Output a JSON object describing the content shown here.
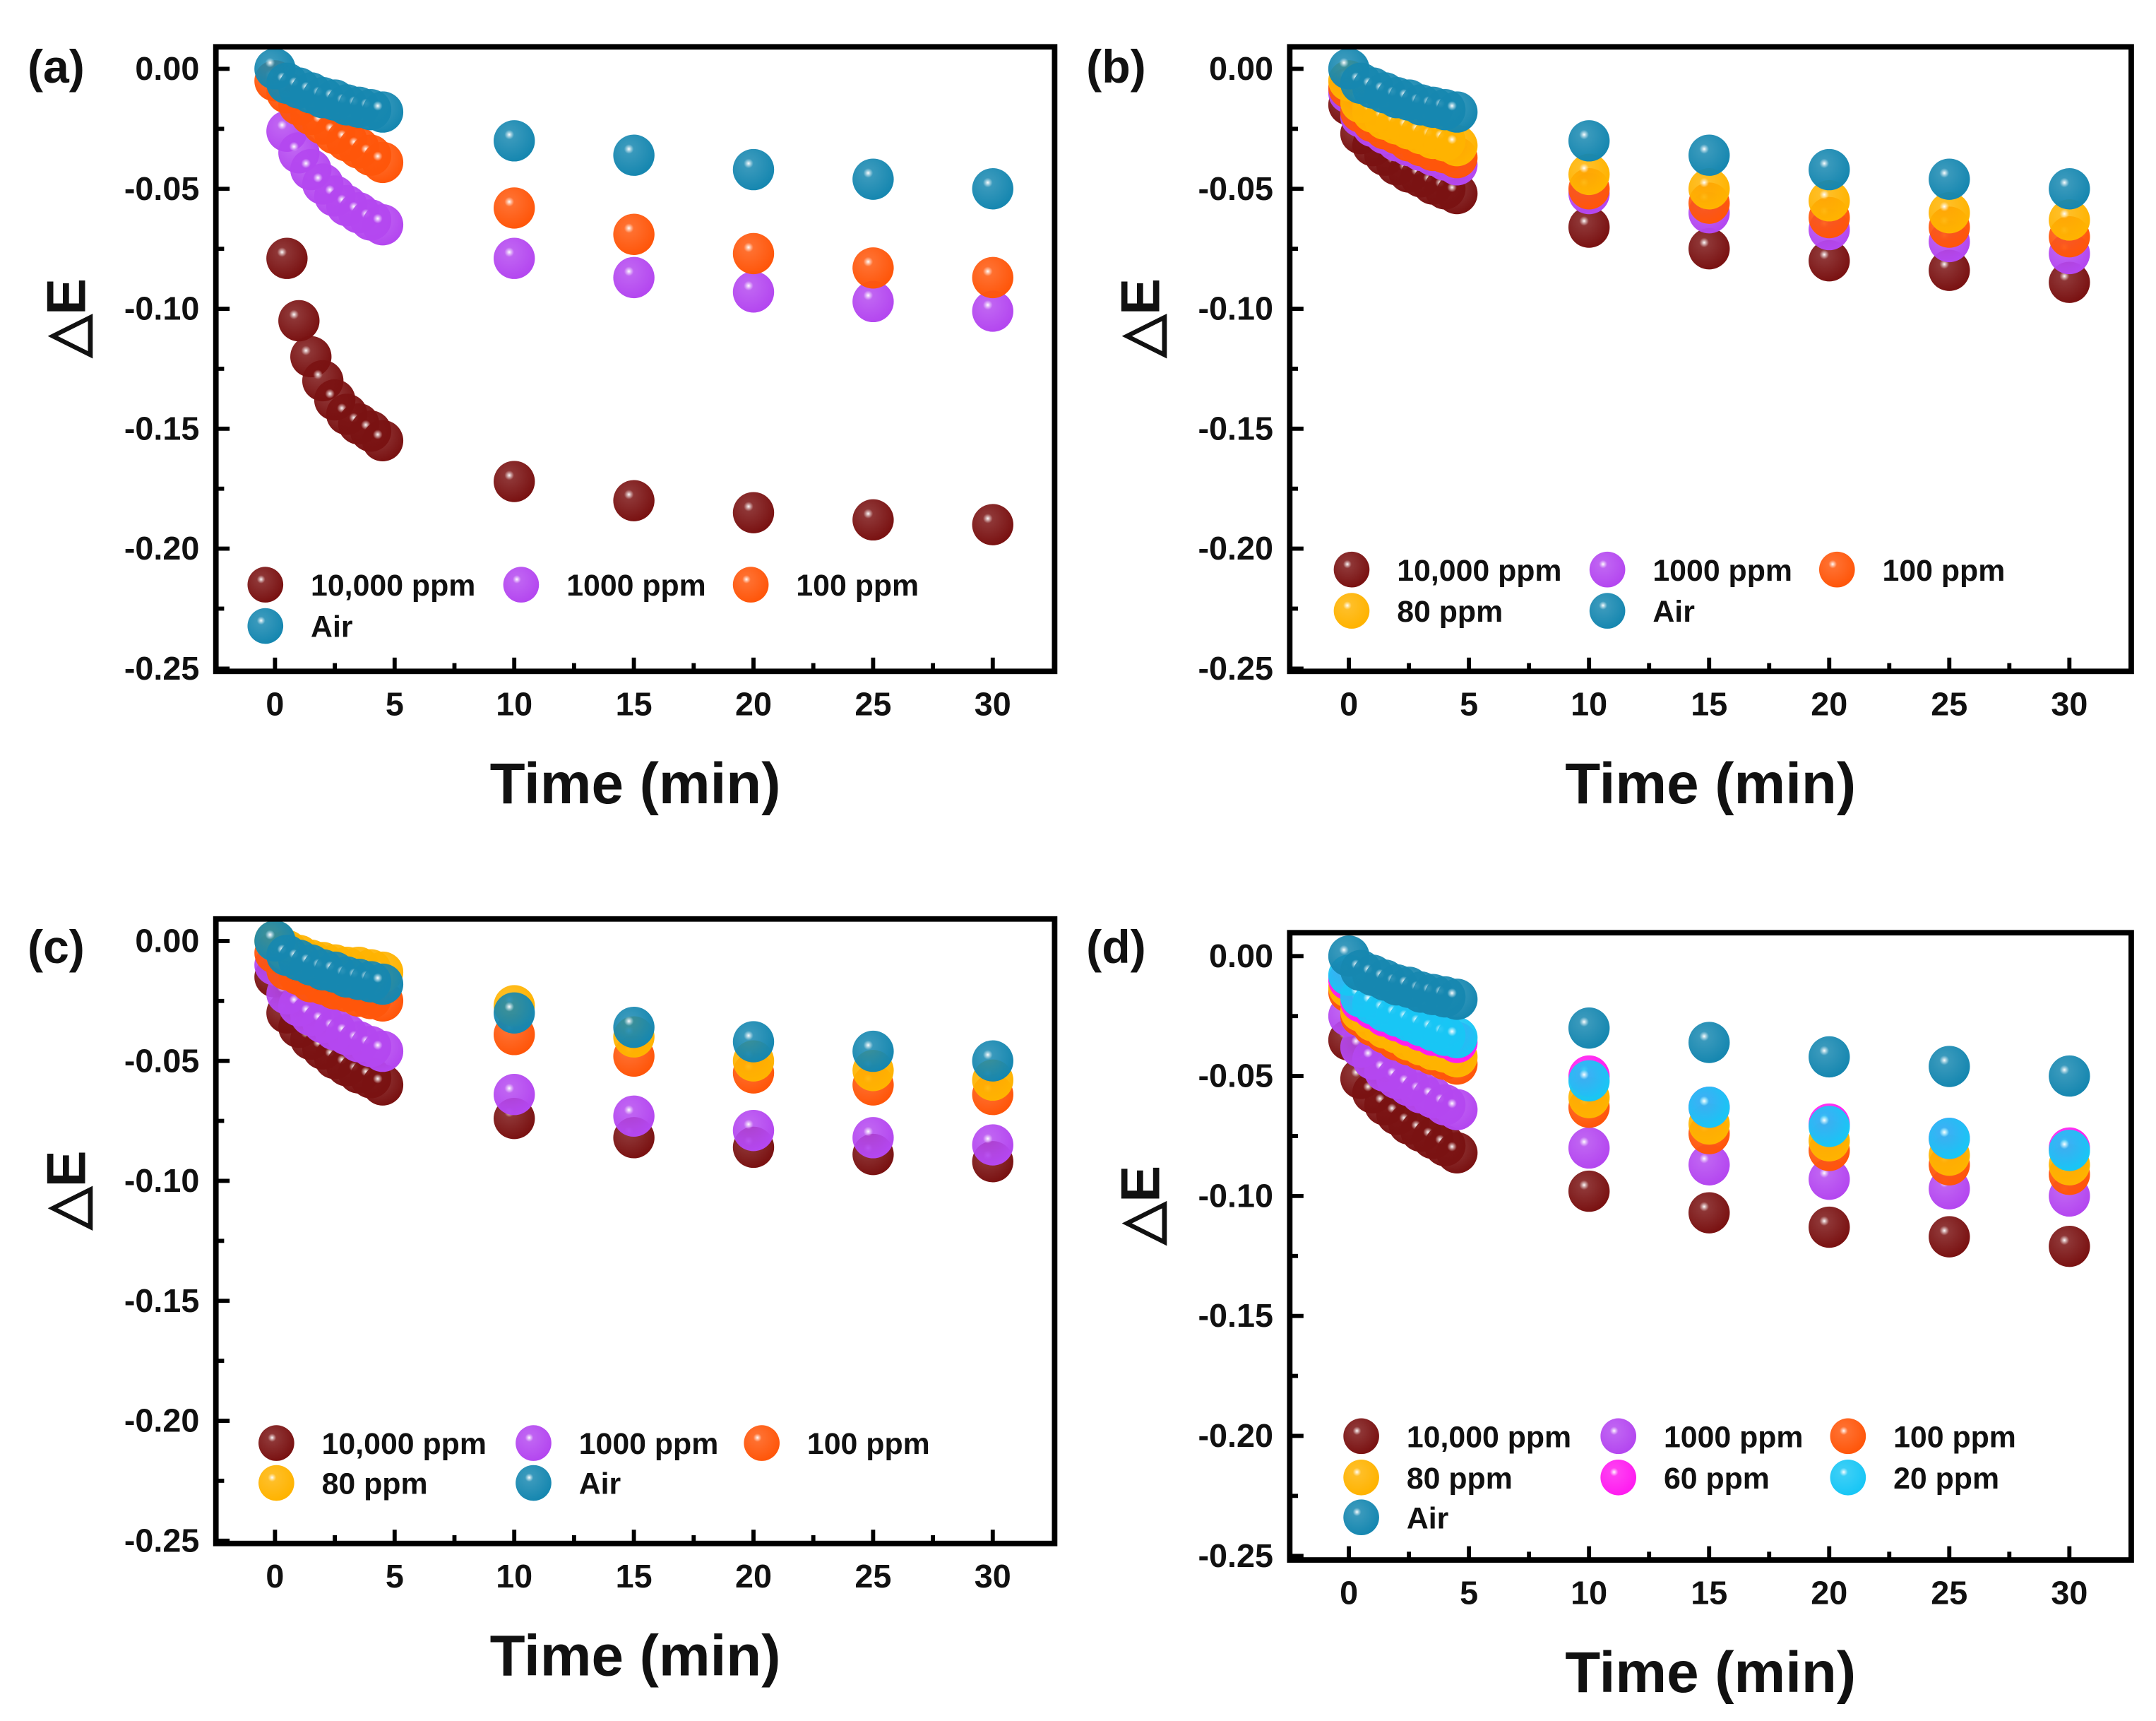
{
  "chart_data": [
    {
      "type": "scatter",
      "panel_label": "(a)",
      "xlabel": "Time (min)",
      "ylabel": "△E",
      "xlim": [
        -2.5,
        32.5
      ],
      "ylim": [
        -0.25,
        0.01
      ],
      "xticks": [
        "0",
        "5",
        "10",
        "15",
        "20",
        "25",
        "30"
      ],
      "yticks": [
        "0.00",
        "-0.05",
        "-0.10",
        "-0.15",
        "-0.20",
        "-0.25"
      ],
      "legend_placement": "bottom-left",
      "x": [
        0,
        0.5,
        1,
        1.5,
        2,
        2.5,
        3,
        3.5,
        4,
        4.5,
        10,
        15,
        20,
        25,
        30
      ],
      "series": [
        {
          "name": "10,000 ppm",
          "color": "#7a1212",
          "values": [
            null,
            -0.079,
            -0.105,
            -0.12,
            -0.13,
            -0.138,
            -0.144,
            -0.148,
            -0.151,
            -0.155,
            -0.172,
            -0.18,
            -0.185,
            -0.188,
            -0.19
          ]
        },
        {
          "name": "1000 ppm",
          "color": "#b447f0",
          "values": [
            null,
            -0.026,
            -0.035,
            -0.042,
            -0.048,
            -0.053,
            -0.057,
            -0.06,
            -0.063,
            -0.065,
            -0.079,
            -0.087,
            -0.093,
            -0.097,
            -0.101
          ]
        },
        {
          "name": "100 ppm",
          "color": "#ff560a",
          "values": [
            -0.005,
            -0.01,
            -0.015,
            -0.019,
            -0.023,
            -0.027,
            -0.03,
            -0.033,
            -0.036,
            -0.039,
            -0.058,
            -0.069,
            -0.077,
            -0.083,
            -0.087
          ]
        },
        {
          "name": "Air",
          "color": "#1687b0",
          "values": [
            0,
            -0.006,
            -0.008,
            -0.01,
            -0.012,
            -0.013,
            -0.015,
            -0.016,
            -0.017,
            -0.018,
            -0.03,
            -0.036,
            -0.042,
            -0.046,
            -0.05
          ]
        }
      ]
    },
    {
      "type": "scatter",
      "panel_label": "(b)",
      "xlabel": "Time (min)",
      "ylabel": "△E",
      "xlim": [
        -2.5,
        32.5
      ],
      "ylim": [
        -0.25,
        0.01
      ],
      "xticks": [
        "0",
        "5",
        "10",
        "15",
        "20",
        "25",
        "30"
      ],
      "yticks": [
        "0.00",
        "-0.05",
        "-0.10",
        "-0.15",
        "-0.20",
        "-0.25"
      ],
      "legend_placement": "bottom-left",
      "x": [
        0,
        0.5,
        1,
        1.5,
        2,
        2.5,
        3,
        3.5,
        4,
        4.5,
        10,
        15,
        20,
        25,
        30
      ],
      "series": [
        {
          "name": "10,000 ppm",
          "color": "#7a1212",
          "values": [
            -0.015,
            -0.027,
            -0.032,
            -0.036,
            -0.04,
            -0.043,
            -0.045,
            -0.048,
            -0.05,
            -0.052,
            -0.066,
            -0.075,
            -0.08,
            -0.084,
            -0.089
          ]
        },
        {
          "name": "1000 ppm",
          "color": "#b447f0",
          "values": [
            -0.01,
            -0.02,
            -0.024,
            -0.027,
            -0.03,
            -0.032,
            -0.034,
            -0.036,
            -0.038,
            -0.04,
            -0.052,
            -0.06,
            -0.067,
            -0.072,
            -0.077
          ]
        },
        {
          "name": "100 ppm",
          "color": "#ff560a",
          "values": [
            -0.008,
            -0.018,
            -0.022,
            -0.025,
            -0.027,
            -0.03,
            -0.032,
            -0.034,
            -0.035,
            -0.037,
            -0.05,
            -0.056,
            -0.062,
            -0.066,
            -0.07
          ]
        },
        {
          "name": "80 ppm",
          "color": "#ffb300",
          "values": [
            -0.005,
            -0.014,
            -0.018,
            -0.021,
            -0.023,
            -0.025,
            -0.027,
            -0.029,
            -0.03,
            -0.032,
            -0.044,
            -0.05,
            -0.055,
            -0.06,
            -0.063
          ]
        },
        {
          "name": "Air",
          "color": "#1687b0",
          "values": [
            0,
            -0.006,
            -0.008,
            -0.01,
            -0.012,
            -0.013,
            -0.015,
            -0.016,
            -0.017,
            -0.018,
            -0.03,
            -0.036,
            -0.042,
            -0.046,
            -0.05
          ]
        }
      ]
    },
    {
      "type": "scatter",
      "panel_label": "(c)",
      "xlabel": "Time (min)",
      "ylabel": "△E",
      "xlim": [
        -2.5,
        32.5
      ],
      "ylim": [
        -0.25,
        0.01
      ],
      "xticks": [
        "0",
        "5",
        "10",
        "15",
        "20",
        "25",
        "30"
      ],
      "yticks": [
        "0.00",
        "-0.05",
        "-0.10",
        "-0.15",
        "-0.20",
        "-0.25"
      ],
      "legend_placement": "bottom-left",
      "x": [
        0,
        0.5,
        1,
        1.5,
        2,
        2.5,
        3,
        3.5,
        4,
        4.5,
        10,
        15,
        20,
        25,
        30
      ],
      "series": [
        {
          "name": "10,000 ppm",
          "color": "#7a1212",
          "values": [
            -0.015,
            -0.03,
            -0.036,
            -0.041,
            -0.045,
            -0.049,
            -0.052,
            -0.055,
            -0.057,
            -0.06,
            -0.074,
            -0.082,
            -0.086,
            -0.089,
            -0.092
          ]
        },
        {
          "name": "1000 ppm",
          "color": "#b447f0",
          "values": [
            -0.01,
            -0.022,
            -0.027,
            -0.031,
            -0.034,
            -0.037,
            -0.039,
            -0.042,
            -0.044,
            -0.046,
            -0.064,
            -0.073,
            -0.079,
            -0.082,
            -0.085
          ]
        },
        {
          "name": "100 ppm",
          "color": "#ff560a",
          "values": [
            -0.005,
            -0.012,
            -0.014,
            -0.017,
            -0.018,
            -0.02,
            -0.021,
            -0.023,
            -0.024,
            -0.025,
            -0.039,
            -0.048,
            -0.055,
            -0.06,
            -0.064
          ]
        },
        {
          "name": "80 ppm",
          "color": "#ffb300",
          "values": [
            0,
            -0.004,
            -0.006,
            -0.008,
            -0.009,
            -0.01,
            -0.011,
            -0.011,
            -0.012,
            -0.013,
            -0.027,
            -0.04,
            -0.05,
            -0.054,
            -0.058
          ]
        },
        {
          "name": "Air",
          "color": "#1687b0",
          "values": [
            0,
            -0.006,
            -0.008,
            -0.01,
            -0.012,
            -0.013,
            -0.015,
            -0.016,
            -0.017,
            -0.018,
            -0.03,
            -0.036,
            -0.042,
            -0.046,
            -0.05
          ]
        }
      ]
    },
    {
      "type": "scatter",
      "panel_label": "(d)",
      "xlabel": "Time (min)",
      "ylabel": "△E",
      "xlim": [
        -2.5,
        32.5
      ],
      "ylim": [
        -0.25,
        0.01
      ],
      "xticks": [
        "0",
        "5",
        "10",
        "15",
        "20",
        "25",
        "30"
      ],
      "yticks": [
        "0.00",
        "-0.05",
        "-0.10",
        "-0.15",
        "-0.20",
        "-0.25"
      ],
      "legend_placement": "bottom-left",
      "x": [
        0,
        0.5,
        1,
        1.5,
        2,
        2.5,
        3,
        3.5,
        4,
        4.5,
        10,
        15,
        20,
        25,
        30
      ],
      "series": [
        {
          "name": "10,000 ppm",
          "color": "#7a1212",
          "values": [
            -0.035,
            -0.051,
            -0.057,
            -0.062,
            -0.066,
            -0.07,
            -0.073,
            -0.076,
            -0.079,
            -0.082,
            -0.098,
            -0.107,
            -0.113,
            -0.117,
            -0.121
          ]
        },
        {
          "name": "1000 ppm",
          "color": "#b447f0",
          "values": [
            -0.025,
            -0.038,
            -0.043,
            -0.048,
            -0.051,
            -0.054,
            -0.057,
            -0.059,
            -0.062,
            -0.064,
            -0.08,
            -0.087,
            -0.093,
            -0.097,
            -0.1
          ]
        },
        {
          "name": "100 ppm",
          "color": "#ff560a",
          "values": [
            -0.015,
            -0.025,
            -0.029,
            -0.032,
            -0.035,
            -0.037,
            -0.039,
            -0.041,
            -0.043,
            -0.045,
            -0.063,
            -0.074,
            -0.081,
            -0.087,
            -0.091
          ]
        },
        {
          "name": "80 ppm",
          "color": "#ffb300",
          "values": [
            -0.013,
            -0.023,
            -0.027,
            -0.03,
            -0.032,
            -0.035,
            -0.037,
            -0.039,
            -0.04,
            -0.042,
            -0.059,
            -0.07,
            -0.077,
            -0.083,
            -0.087
          ]
        },
        {
          "name": "60 ppm",
          "color": "#ff1cf0",
          "values": [
            -0.01,
            -0.019,
            -0.022,
            -0.025,
            -0.027,
            -0.029,
            -0.031,
            -0.033,
            -0.034,
            -0.036,
            -0.05,
            -0.063,
            -0.07,
            -0.076,
            -0.08
          ]
        },
        {
          "name": "20 ppm",
          "color": "#18c6f5",
          "values": [
            -0.008,
            -0.017,
            -0.02,
            -0.023,
            -0.025,
            -0.027,
            -0.029,
            -0.031,
            -0.033,
            -0.034,
            -0.052,
            -0.063,
            -0.071,
            -0.076,
            -0.081
          ]
        },
        {
          "name": "Air",
          "color": "#1687b0",
          "values": [
            0,
            -0.006,
            -0.008,
            -0.01,
            -0.012,
            -0.013,
            -0.015,
            -0.016,
            -0.017,
            -0.018,
            -0.03,
            -0.036,
            -0.042,
            -0.046,
            -0.05
          ]
        }
      ]
    }
  ]
}
